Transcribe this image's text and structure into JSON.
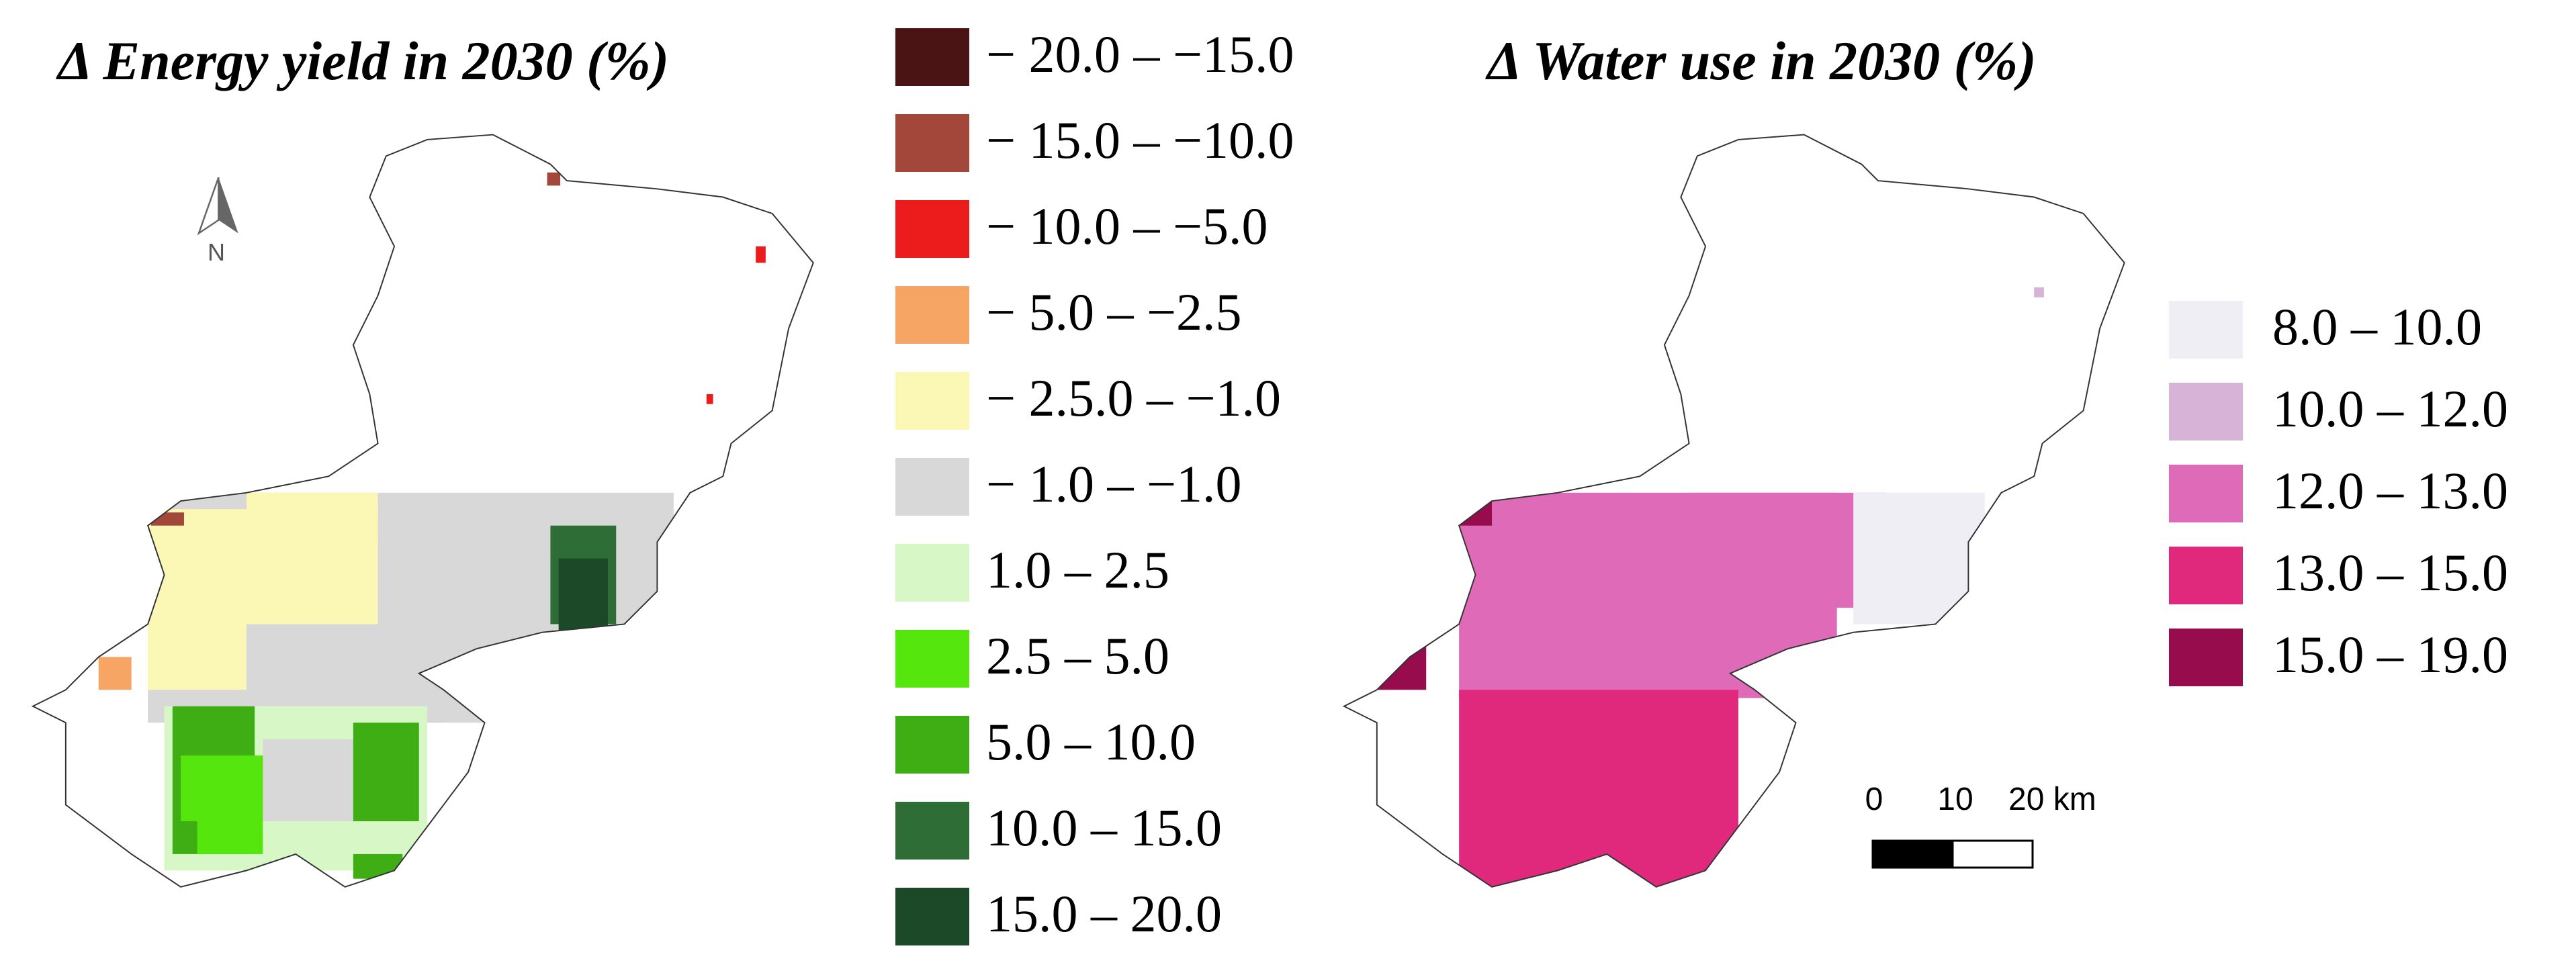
{
  "maps": [
    {
      "title": "Δ Energy yield in 2030 (%)",
      "legend": [
        {
          "label": "− 20.0 – −15.0",
          "color": "#4a1414"
        },
        {
          "label": "− 15.0 – −10.0",
          "color": "#a3473a"
        },
        {
          "label": "− 10.0 – −5.0",
          "color": "#ec1c1c"
        },
        {
          "label": "− 5.0 – −2.5",
          "color": "#f6a565"
        },
        {
          "label": "− 2.5.0 – −1.0",
          "color": "#fbf8b6"
        },
        {
          "label": "− 1.0 – −1.0",
          "color": "#d8d8d8"
        },
        {
          "label": "1.0 – 2.5",
          "color": "#d7f7c6"
        },
        {
          "label": "2.5 – 5.0",
          "color": "#55e60e"
        },
        {
          "label": "5.0 – 10.0",
          "color": "#3fad14"
        },
        {
          "label": "10.0 – 15.0",
          "color": "#2e6e36"
        },
        {
          "label": "15.0 – 20.0",
          "color": "#1c4a28"
        }
      ]
    },
    {
      "title": "Δ Water use in 2030 (%)",
      "legend": [
        {
          "label": "8.0 – 10.0",
          "color": "#efeef4"
        },
        {
          "label": "10.0 – 12.0",
          "color": "#d7b3d8"
        },
        {
          "label": "12.0 – 13.0",
          "color": "#df6bb8"
        },
        {
          "label": "13.0 – 15.0",
          "color": "#e0287c"
        },
        {
          "label": "15.0 – 19.0",
          "color": "#960c4c"
        }
      ]
    }
  ],
  "north_arrow": "N",
  "scale_bar": {
    "labels": [
      "0",
      "10",
      "20 km"
    ]
  }
}
